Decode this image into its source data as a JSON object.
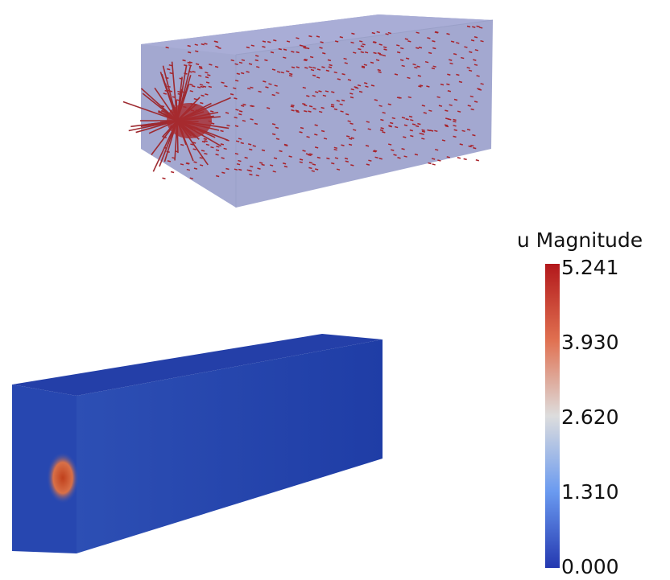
{
  "colorbar": {
    "title": "u Magnitude",
    "tick_labels": [
      "5.241",
      "3.930",
      "2.620",
      "1.310",
      "0.000"
    ]
  }
}
